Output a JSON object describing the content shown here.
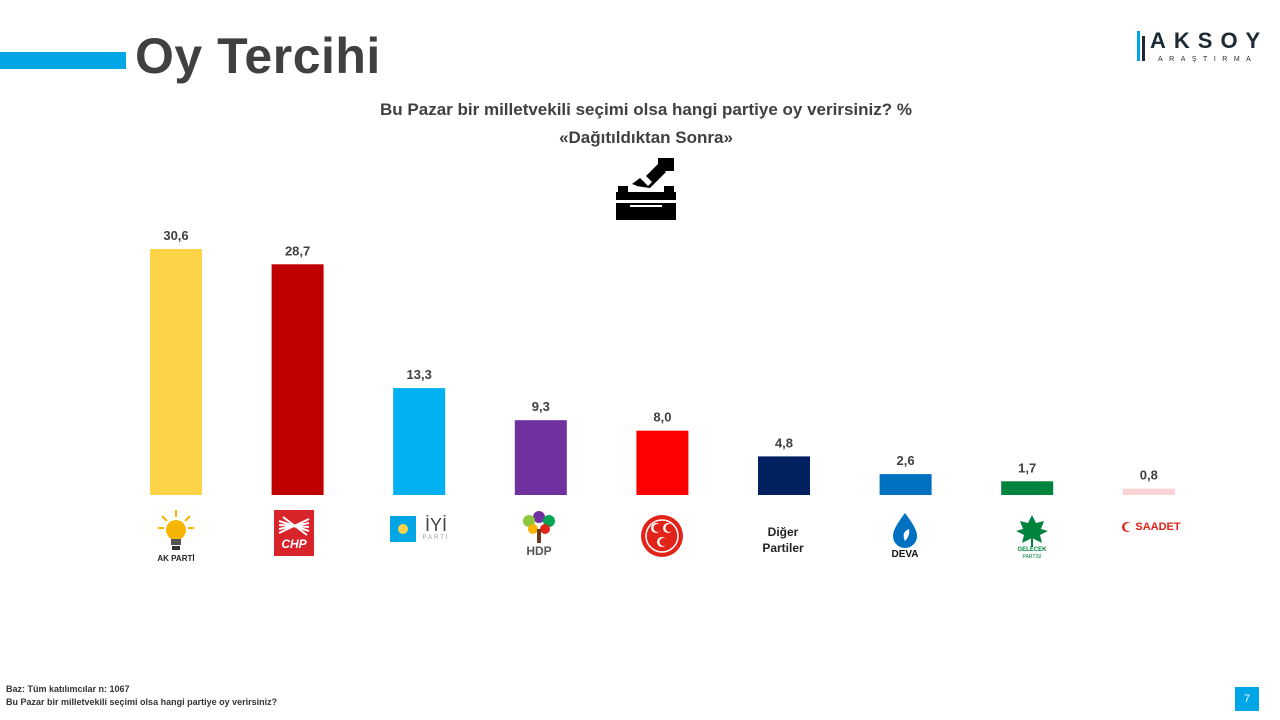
{
  "title": "Oy Tercihi",
  "brand": {
    "name": "AKSOY",
    "sub": "ARAŞTIRMA"
  },
  "chart_data": {
    "type": "bar",
    "title": "Bu Pazar bir milletvekili seçimi olsa hangi partiye oy verirsiniz? %",
    "subtitle": "«Dağıtıldıktan  Sonra»",
    "categories": [
      "AK PARTİ",
      "CHP",
      "İYİ PARTİ",
      "HDP",
      "MHP",
      "Diğer Partiler",
      "DEVA",
      "GELECEK PARTİSİ",
      "SAADET"
    ],
    "values": [
      30.6,
      28.7,
      13.3,
      9.3,
      8.0,
      4.8,
      2.6,
      1.7,
      0.8
    ],
    "value_labels": [
      "30,6",
      "28,7",
      "13,3",
      "9,3",
      "8,0",
      "4,8",
      "2,6",
      "1,7",
      "0,8"
    ],
    "colors": [
      "#FDD347",
      "#C00000",
      "#00B0F0",
      "#7030A0",
      "#FF0000",
      "#002060",
      "#0070C0",
      "#00843D",
      "#FAD4D4"
    ],
    "ylim": [
      0,
      30.6
    ],
    "grid": false,
    "legend": "none"
  },
  "logos": {
    "akp": "AK PARTİ",
    "chp": "CHP",
    "iyi": "İYİ",
    "iyi_sub": "PARTİ",
    "hdp": "HDP",
    "diger_line1": "Diğer",
    "diger_line2": "Partiler",
    "deva": "DEVA",
    "gelecek": "GELECEK",
    "gelecek_sub": "PARTİSİ",
    "saadet": "SAADET"
  },
  "footnotes": {
    "base": "Baz: Tüm katılımcılar n: 1067",
    "question": "Bu Pazar bir milletvekili seçimi olsa hangi partiye oy verirsiniz?"
  },
  "page_number": "7"
}
